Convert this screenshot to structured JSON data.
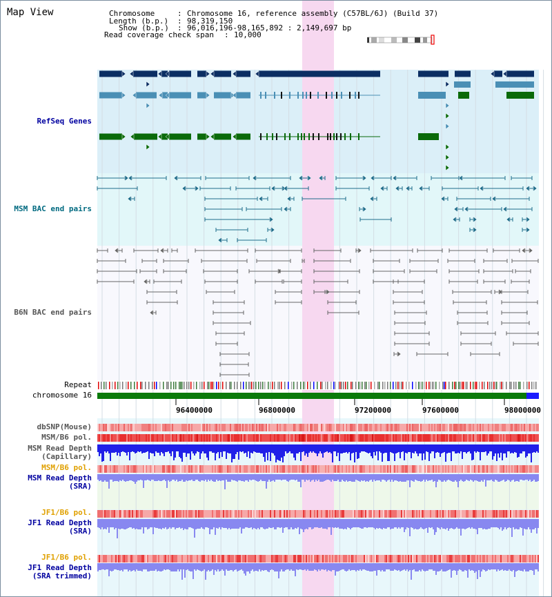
{
  "map_title": "Map View",
  "info": {
    "chromosome_key": "Chromosome",
    "chromosome_val": "Chromosome 16, reference assembly (C57BL/6J) (Build 37)",
    "length_key": "Length (b.p.)",
    "length_val": "98,319,150",
    "show_key": "Show (b.p.)",
    "show_val": "96,016,196-98,165,892 : 2,149,697 bp",
    "coverage_key": "Read coverage check span",
    "coverage_val": "10,000"
  },
  "tracks": {
    "refseq": "RefSeq Genes",
    "msm_bac": "MSM BAC end pairs",
    "b6n_bac": "B6N BAC end pairs",
    "repeat": "Repeat",
    "chromosome": "chromosome 16",
    "dbsnp": "dbSNP(Mouse)",
    "msm_b6_pol_1": "MSM/B6 pol.",
    "msm_read_cap": "MSM Read Depth\n(Capillary)",
    "msm_b6_pol_2": "MSM/B6 pol.",
    "msm_read_sra": "MSM Read Depth\n(SRA)",
    "jf1_b6_pol_1": "JF1/B6 pol.",
    "jf1_read_sra": "JF1 Read Depth\n(SRA)",
    "jf1_b6_pol_2": "JF1/B6 pol.",
    "jf1_read_trim": "JF1 Read Depth\n(SRA trimmed)"
  },
  "axis_ticks": [
    "96400000",
    "96800000",
    "97200000",
    "97600000",
    "98000000"
  ],
  "colors": {
    "refseq_bg": "#dbeff8",
    "msm_bg": "#e2f7f9",
    "b6n_bg": "#f8f8fd",
    "highlight": "#f7d8f0",
    "gene_dark": "#0b2e63",
    "gene_mid": "#4a8fb5",
    "gene_green": "#0a6a0a",
    "bac_msm": "#1d6c8a",
    "bac_b6n": "#666666",
    "chrom_bar": "#0a7a0a",
    "chrom_end": "#1a1aff",
    "snp": "#f08080",
    "depth": "#2020e8",
    "depth_light": "#8888f0",
    "label_blue": "#0000a0",
    "label_orange": "#e0a000",
    "label_teal": "#006a80"
  }
}
